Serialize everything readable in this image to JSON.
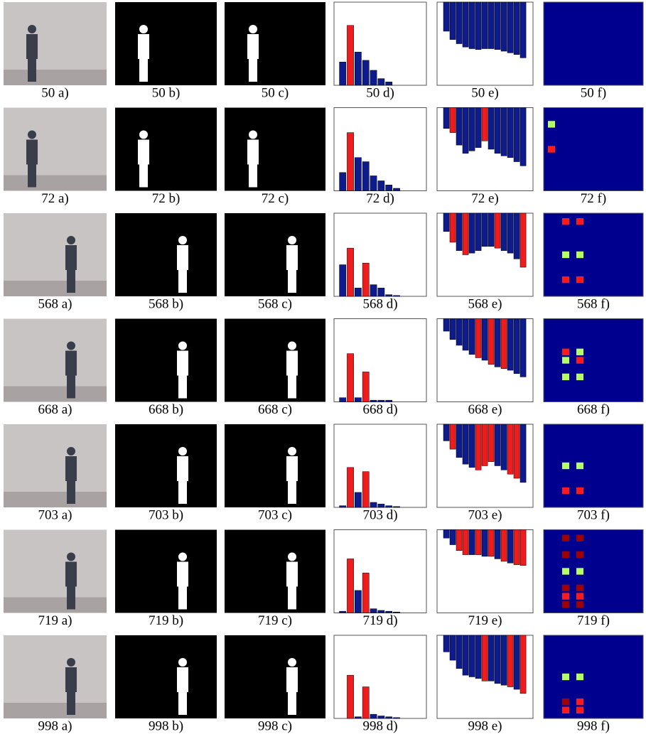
{
  "panels": [
    {
      "captions": [
        "50 a)",
        "50 b)",
        "50 c)",
        "50 d)",
        "50 e)",
        "50 f)"
      ],
      "histogram": {
        "values": [
          28,
          72,
          40,
          30,
          18,
          8,
          4
        ],
        "colors": [
          "#0d1b8c",
          "#ee1c1c",
          "#0d1b8c",
          "#0d1b8c",
          "#0d1b8c",
          "#0d1b8c",
          "#0d1b8c"
        ]
      },
      "bars": {
        "values": [
          35,
          45,
          50,
          54,
          56,
          57,
          56,
          56,
          57,
          59,
          61,
          63,
          67
        ],
        "colors": [
          "#0d1b8c",
          "#0d1b8c",
          "#0d1b8c",
          "#0d1b8c",
          "#0d1b8c",
          "#0d1b8c",
          "#0d1b8c",
          "#0d1b8c",
          "#0d1b8c",
          "#0d1b8c",
          "#0d1b8c",
          "#0d1b8c",
          "#0d1b8c"
        ]
      },
      "cells": []
    },
    {
      "captions": [
        "72 a)",
        "72 b)",
        "72 c)",
        "72 d)",
        "72 e)",
        "72 f)"
      ],
      "histogram": {
        "values": [
          22,
          70,
          40,
          35,
          18,
          12,
          7,
          3
        ],
        "colors": [
          "#0d1b8c",
          "#ee1c1c",
          "#0d1b8c",
          "#0d1b8c",
          "#0d1b8c",
          "#0d1b8c",
          "#0d1b8c",
          "#0d1b8c"
        ]
      },
      "bars": {
        "values": [
          25,
          30,
          45,
          55,
          52,
          48,
          40,
          50,
          55,
          58,
          60,
          65,
          70
        ],
        "colors": [
          "#0d1b8c",
          "#ee1c1c",
          "#0d1b8c",
          "#0d1b8c",
          "#0d1b8c",
          "#0d1b8c",
          "#ee1c1c",
          "#0d1b8c",
          "#0d1b8c",
          "#0d1b8c",
          "#0d1b8c",
          "#0d1b8c",
          "#0d1b8c"
        ]
      },
      "cells": [
        {
          "col": 0,
          "row": 1,
          "color": "#b4ff66"
        },
        {
          "col": 0,
          "row": 4,
          "color": "#ff1a1a"
        }
      ]
    },
    {
      "captions": [
        "568 a)",
        "568 b)",
        "568 c)",
        "568 d)",
        "568 e)",
        "568 f)"
      ],
      "histogram": {
        "values": [
          38,
          58,
          10,
          40,
          14,
          10,
          2,
          1
        ],
        "colors": [
          "#0d1b8c",
          "#ee1c1c",
          "#0d1b8c",
          "#ee1c1c",
          "#0d1b8c",
          "#0d1b8c",
          "#0d1b8c",
          "#0d1b8c"
        ]
      },
      "bars": {
        "values": [
          22,
          35,
          45,
          50,
          48,
          45,
          40,
          40,
          42,
          45,
          48,
          55,
          65
        ],
        "colors": [
          "#0d1b8c",
          "#ee1c1c",
          "#0d1b8c",
          "#ee1c1c",
          "#0d1b8c",
          "#0d1b8c",
          "#0d1b8c",
          "#0d1b8c",
          "#ee1c1c",
          "#0d1b8c",
          "#0d1b8c",
          "#0d1b8c",
          "#ee1c1c"
        ]
      },
      "cells": [
        {
          "col": 2,
          "row": 0,
          "color": "#ff1a1a"
        },
        {
          "col": 4,
          "row": 0,
          "color": "#ff1a1a"
        },
        {
          "col": 2,
          "row": 4,
          "color": "#b4ff66"
        },
        {
          "col": 4,
          "row": 4,
          "color": "#b4ff66"
        },
        {
          "col": 2,
          "row": 7,
          "color": "#ff1a1a"
        },
        {
          "col": 4,
          "row": 7,
          "color": "#ff1a1a"
        }
      ]
    },
    {
      "captions": [
        "668 a)",
        "668 b)",
        "668 c)",
        "668 d)",
        "668 e)",
        "668 f)"
      ],
      "histogram": {
        "values": [
          5,
          58,
          5,
          36,
          2,
          2,
          2
        ],
        "colors": [
          "#0d1b8c",
          "#ee1c1c",
          "#0d1b8c",
          "#ee1c1c",
          "#0d1b8c",
          "#0d1b8c",
          "#0d1b8c"
        ]
      },
      "bars": {
        "values": [
          15,
          25,
          32,
          38,
          43,
          47,
          50,
          55,
          58,
          60,
          62,
          66,
          70
        ],
        "colors": [
          "#0d1b8c",
          "#0d1b8c",
          "#0d1b8c",
          "#0d1b8c",
          "#0d1b8c",
          "#ee1c1c",
          "#0d1b8c",
          "#ee1c1c",
          "#0d1b8c",
          "#ee1c1c",
          "#0d1b8c",
          "#0d1b8c",
          "#0d1b8c"
        ]
      },
      "cells": [
        {
          "col": 2,
          "row": 3,
          "color": "#ff1a1a"
        },
        {
          "col": 4,
          "row": 3,
          "color": "#b4ff66"
        },
        {
          "col": 2,
          "row": 4,
          "color": "#b4ff66"
        },
        {
          "col": 4,
          "row": 4,
          "color": "#ff1a1a"
        },
        {
          "col": 2,
          "row": 6,
          "color": "#b4ff66"
        },
        {
          "col": 4,
          "row": 6,
          "color": "#b4ff66"
        }
      ]
    },
    {
      "captions": [
        "703 a)",
        "703 b)",
        "703 c)",
        "703 d)",
        "703 e)",
        "703 f)"
      ],
      "histogram": {
        "values": [
          2,
          48,
          18,
          43,
          6,
          4,
          2,
          1
        ],
        "colors": [
          "#0d1b8c",
          "#ee1c1c",
          "#0d1b8c",
          "#ee1c1c",
          "#0d1b8c",
          "#0d1b8c",
          "#0d1b8c",
          "#0d1b8c"
        ]
      },
      "bars": {
        "values": [
          20,
          30,
          40,
          48,
          52,
          55,
          50,
          45,
          50,
          55,
          60,
          65,
          70
        ],
        "colors": [
          "#0d1b8c",
          "#ee1c1c",
          "#0d1b8c",
          "#0d1b8c",
          "#0d1b8c",
          "#ee1c1c",
          "#ee1c1c",
          "#ee1c1c",
          "#0d1b8c",
          "#0d1b8c",
          "#ee1c1c",
          "#ee1c1c",
          "#0d1b8c"
        ]
      },
      "cells": [
        {
          "col": 2,
          "row": 4,
          "color": "#b4ff66"
        },
        {
          "col": 4,
          "row": 4,
          "color": "#b4ff66"
        },
        {
          "col": 2,
          "row": 7,
          "color": "#ff1a1a"
        },
        {
          "col": 4,
          "row": 7,
          "color": "#ff1a1a"
        }
      ]
    },
    {
      "captions": [
        "719 a)",
        "719 b)",
        "719 c)",
        "719 d)",
        "719 e)",
        "719 f)"
      ],
      "histogram": {
        "values": [
          2,
          65,
          27,
          48,
          5,
          3,
          2,
          1
        ],
        "colors": [
          "#0d1b8c",
          "#ee1c1c",
          "#0d1b8c",
          "#ee1c1c",
          "#0d1b8c",
          "#0d1b8c",
          "#0d1b8c",
          "#0d1b8c"
        ]
      },
      "bars": {
        "values": [
          10,
          18,
          25,
          30,
          30,
          30,
          32,
          32,
          35,
          38,
          40,
          42,
          43
        ],
        "colors": [
          "#0d1b8c",
          "#0d1b8c",
          "#ee1c1c",
          "#ee1c1c",
          "#0d1b8c",
          "#ee1c1c",
          "#0d1b8c",
          "#ee1c1c",
          "#0d1b8c",
          "#ee1c1c",
          "#0d1b8c",
          "#ee1c1c",
          "#ee1c1c"
        ]
      },
      "cells": [
        {
          "col": 2,
          "row": 0,
          "color": "#a00000"
        },
        {
          "col": 4,
          "row": 0,
          "color": "#a00000"
        },
        {
          "col": 2,
          "row": 2,
          "color": "#a00000"
        },
        {
          "col": 4,
          "row": 2,
          "color": "#a00000"
        },
        {
          "col": 2,
          "row": 4,
          "color": "#b4ff66"
        },
        {
          "col": 4,
          "row": 4,
          "color": "#b4ff66"
        },
        {
          "col": 2,
          "row": 6,
          "color": "#a00000"
        },
        {
          "col": 4,
          "row": 6,
          "color": "#a00000"
        },
        {
          "col": 2,
          "row": 7,
          "color": "#ff1a1a"
        },
        {
          "col": 4,
          "row": 7,
          "color": "#ff1a1a"
        },
        {
          "col": 2,
          "row": 8,
          "color": "#a00000"
        },
        {
          "col": 4,
          "row": 8,
          "color": "#a00000"
        }
      ]
    },
    {
      "captions": [
        "998 a)",
        "998 b)",
        "998 c)",
        "998 d)",
        "998 e)",
        "998 f)"
      ],
      "histogram": {
        "values": [
          0,
          52,
          2,
          38,
          5,
          3,
          2,
          1
        ],
        "colors": [
          "#0d1b8c",
          "#ee1c1c",
          "#0d1b8c",
          "#ee1c1c",
          "#0d1b8c",
          "#0d1b8c",
          "#0d1b8c",
          "#0d1b8c"
        ]
      },
      "bars": {
        "values": [
          20,
          30,
          40,
          48,
          50,
          52,
          55,
          55,
          58,
          60,
          62,
          65,
          70
        ],
        "colors": [
          "#0d1b8c",
          "#0d1b8c",
          "#0d1b8c",
          "#0d1b8c",
          "#0d1b8c",
          "#0d1b8c",
          "#ee1c1c",
          "#0d1b8c",
          "#0d1b8c",
          "#0d1b8c",
          "#ee1c1c",
          "#0d1b8c",
          "#ee1c1c"
        ]
      },
      "cells": [
        {
          "col": 2,
          "row": 4,
          "color": "#b4ff66"
        },
        {
          "col": 4,
          "row": 4,
          "color": "#b4ff66"
        },
        {
          "col": 2,
          "row": 7,
          "color": "#a00000"
        },
        {
          "col": 4,
          "row": 7,
          "color": "#ff1a1a"
        },
        {
          "col": 2,
          "row": 8,
          "color": "#ff1a1a"
        },
        {
          "col": 4,
          "row": 8,
          "color": "#ff1a1a"
        }
      ]
    }
  ]
}
